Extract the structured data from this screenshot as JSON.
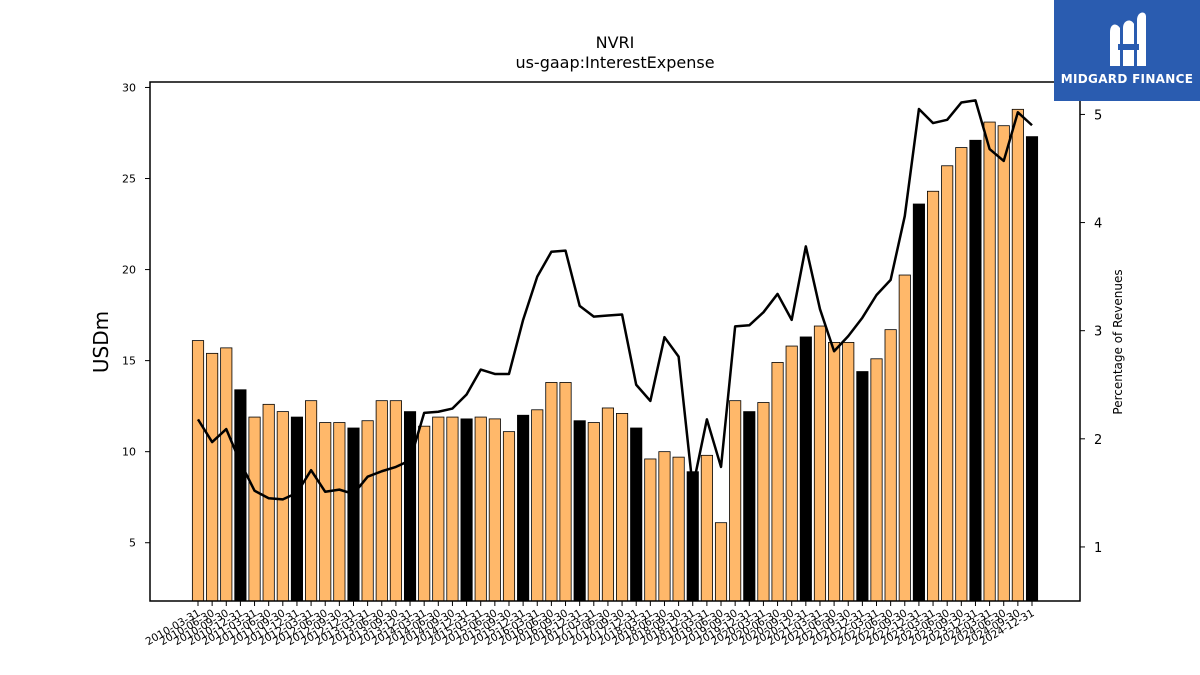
{
  "brand": {
    "name": "MIDGARD FINANCE",
    "color": "#2a5cb0"
  },
  "chart_data": {
    "type": "bar",
    "title": "NVRI",
    "subtitle": "us-gaap:InterestExpense",
    "ylabel": "USDm",
    "y2label": "Percentage of Revenues",
    "ylim": [
      1.8,
      30.3
    ],
    "y2lim": [
      0.5,
      5.3
    ],
    "yticks": [
      5,
      10,
      15,
      20,
      25,
      30
    ],
    "y2ticks": [
      1,
      2,
      3,
      4,
      5
    ],
    "colors": {
      "quarter_bar": "#ffb86a",
      "annual_bar": "#000000",
      "line": "#000000"
    },
    "categories": [
      "2010-03-31",
      "2010-06-30",
      "2010-09-30",
      "2010-12-31",
      "2011-03-31",
      "2011-06-30",
      "2011-09-30",
      "2011-12-31",
      "2012-03-31",
      "2012-06-30",
      "2012-09-30",
      "2012-12-31",
      "2013-03-31",
      "2013-06-30",
      "2013-09-30",
      "2013-12-31",
      "2014-03-31",
      "2014-06-30",
      "2014-09-30",
      "2014-12-31",
      "2015-03-31",
      "2015-06-30",
      "2015-09-30",
      "2015-12-31",
      "2016-03-31",
      "2016-06-30",
      "2016-09-30",
      "2016-12-31",
      "2017-03-31",
      "2017-06-30",
      "2017-09-30",
      "2017-12-31",
      "2018-03-31",
      "2018-06-30",
      "2018-09-30",
      "2018-12-31",
      "2019-03-31",
      "2019-06-30",
      "2019-09-30",
      "2019-12-31",
      "2020-03-31",
      "2020-06-30",
      "2020-09-30",
      "2020-12-31",
      "2021-03-31",
      "2021-06-30",
      "2021-09-30",
      "2021-12-31",
      "2022-03-31",
      "2022-06-30",
      "2022-09-30",
      "2022-12-31",
      "2023-03-31",
      "2023-06-30",
      "2023-09-30",
      "2023-12-31",
      "2024-03-31",
      "2024-06-30",
      "2024-09-30",
      "2024-12-31"
    ],
    "series": [
      {
        "values": [
          16.1,
          15.4,
          15.7,
          13.4,
          11.9,
          12.6,
          12.2,
          11.9,
          12.8,
          11.6,
          11.6,
          11.3,
          11.7,
          12.8,
          12.8,
          12.2,
          11.4,
          11.9,
          11.9,
          11.8,
          11.9,
          11.8,
          11.1,
          12.0,
          12.3,
          13.8,
          13.8,
          11.7,
          11.6,
          12.4,
          12.1,
          11.3,
          9.6,
          10.0,
          9.7,
          8.9,
          9.8,
          6.1,
          12.8,
          12.2,
          12.7,
          14.9,
          15.8,
          16.3,
          16.9,
          16.0,
          16.0,
          14.4,
          15.1,
          16.7,
          19.7,
          23.6,
          24.3,
          25.7,
          26.7,
          27.1,
          28.1,
          27.9,
          28.8,
          27.3
        ],
        "annual": [
          false,
          false,
          false,
          true,
          false,
          false,
          false,
          true,
          false,
          false,
          false,
          true,
          false,
          false,
          false,
          true,
          false,
          false,
          false,
          true,
          false,
          false,
          false,
          true,
          false,
          false,
          false,
          true,
          false,
          false,
          false,
          true,
          false,
          false,
          false,
          true,
          false,
          false,
          false,
          true,
          false,
          false,
          false,
          true,
          false,
          false,
          false,
          true,
          false,
          false,
          false,
          true,
          false,
          false,
          false,
          true,
          false,
          false,
          false,
          true
        ]
      },
      {
        "axis": "y2",
        "type": "line",
        "values": [
          2.18,
          1.97,
          2.09,
          1.78,
          1.52,
          1.45,
          1.44,
          1.5,
          1.71,
          1.51,
          1.53,
          1.49,
          1.65,
          1.7,
          1.74,
          1.8,
          2.24,
          2.25,
          2.28,
          2.41,
          2.64,
          2.6,
          2.6,
          3.1,
          3.5,
          3.73,
          3.74,
          3.23,
          3.13,
          3.14,
          3.15,
          2.5,
          2.35,
          2.94,
          2.76,
          1.55,
          2.18,
          1.74,
          3.04,
          3.05,
          3.17,
          3.34,
          3.1,
          3.78,
          3.2,
          2.81,
          2.95,
          3.12,
          3.33,
          3.47,
          4.06,
          5.05,
          4.92,
          4.95,
          5.11,
          5.13,
          4.68,
          4.57,
          5.02,
          4.9
        ]
      }
    ]
  }
}
